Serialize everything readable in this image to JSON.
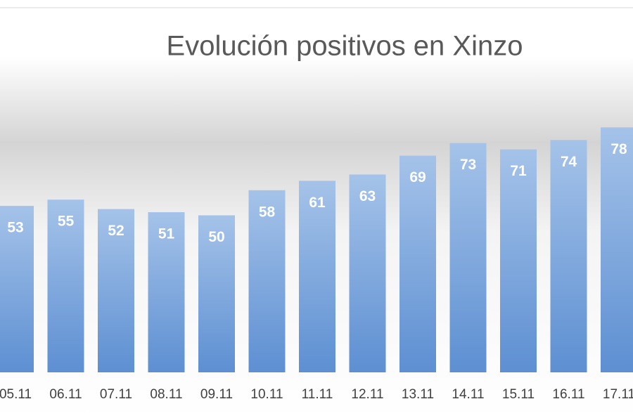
{
  "chart_data": {
    "type": "bar",
    "title": "Evolución positivos en Xinzo",
    "categories": [
      "05.11",
      "06.11",
      "07.11",
      "08.11",
      "09.11",
      "10.11",
      "11.11",
      "12.11",
      "13.11",
      "14.11",
      "15.11",
      "16.11",
      "17.11"
    ],
    "values": [
      53,
      55,
      52,
      51,
      50,
      58,
      61,
      63,
      69,
      73,
      71,
      74,
      78
    ],
    "color": "#6f9fdb"
  }
}
